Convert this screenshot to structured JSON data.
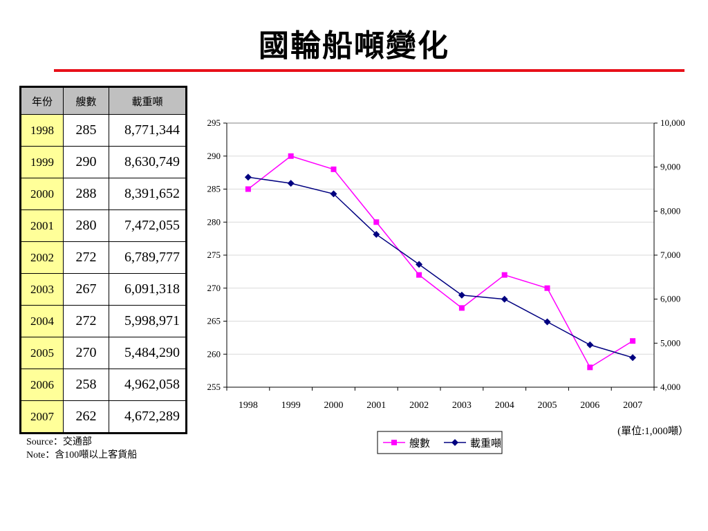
{
  "title": "國輪船噸變化",
  "table": {
    "headers": [
      "年份",
      "艘數",
      "載重噸"
    ],
    "rows": [
      [
        "1998",
        "285",
        "8,771,344"
      ],
      [
        "1999",
        "290",
        "8,630,749"
      ],
      [
        "2000",
        "288",
        "8,391,652"
      ],
      [
        "2001",
        "280",
        "7,472,055"
      ],
      [
        "2002",
        "272",
        "6,789,777"
      ],
      [
        "2003",
        "267",
        "6,091,318"
      ],
      [
        "2004",
        "272",
        "5,998,971"
      ],
      [
        "2005",
        "270",
        "5,484,290"
      ],
      [
        "2006",
        "258",
        "4,962,058"
      ],
      [
        "2007",
        "262",
        "4,672,289"
      ]
    ]
  },
  "notes": {
    "source": "Source：交通部",
    "note": "Note：含100噸以上客貨船"
  },
  "colors": {
    "title_rule": "#e8101a",
    "series_ships": "#ff00ff",
    "series_tonnage": "#000080",
    "year_cell": "#ffff99",
    "header_cell": "#c0c0c0"
  },
  "chart_data": {
    "type": "line",
    "categories": [
      "1998",
      "1999",
      "2000",
      "2001",
      "2002",
      "2003",
      "2004",
      "2005",
      "2006",
      "2007"
    ],
    "series": [
      {
        "name": "艘數",
        "axis": "left",
        "marker": "square",
        "values": [
          285,
          290,
          288,
          280,
          272,
          267,
          272,
          270,
          258,
          262
        ]
      },
      {
        "name": "載重噸",
        "axis": "right",
        "marker": "diamond",
        "values": [
          8771,
          8631,
          8392,
          7472,
          6790,
          6091,
          5999,
          5484,
          4962,
          4672
        ]
      }
    ],
    "y_left": {
      "min": 255,
      "max": 295,
      "step": 5,
      "ticks": [
        "255",
        "260",
        "265",
        "270",
        "275",
        "280",
        "285",
        "290",
        "295"
      ]
    },
    "y_right": {
      "min": 4000,
      "max": 10000,
      "step": 1000,
      "ticks": [
        "4,000",
        "5,000",
        "6,000",
        "7,000",
        "8,000",
        "9,000",
        "10,000"
      ]
    },
    "unit_label": "(單位:1,000噸）",
    "grid": true,
    "legend_position": "bottom-right"
  }
}
